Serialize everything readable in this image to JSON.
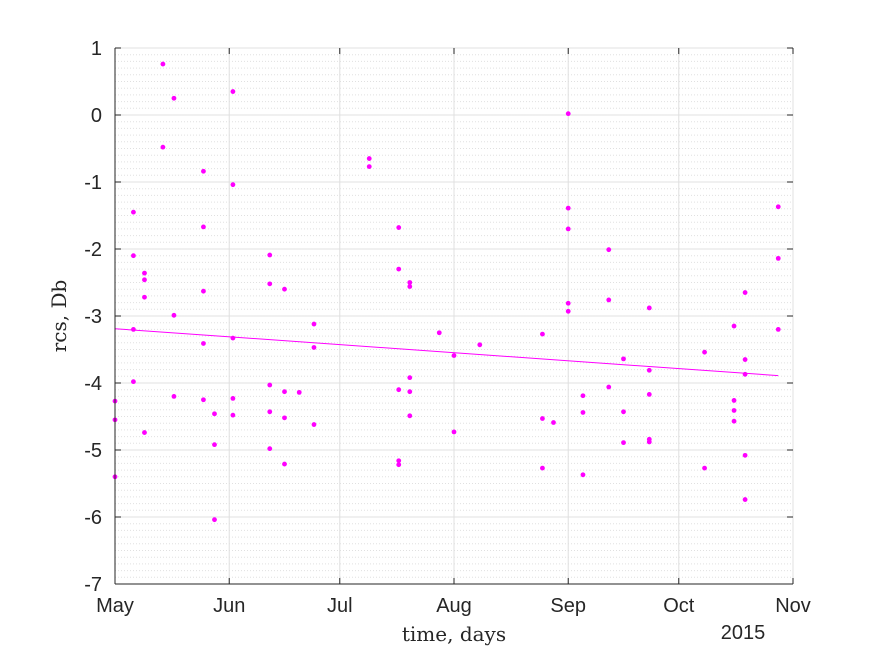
{
  "chart_data": {
    "type": "scatter",
    "title": "",
    "xlabel": "time, days",
    "ylabel": "rcs, Db",
    "x_axis_kind": "date",
    "xlim": [
      "2015-05-01",
      "2015-11-01"
    ],
    "ylim": [
      -7,
      1
    ],
    "x_ticks": [
      {
        "date": "2015-05-01",
        "label": "May"
      },
      {
        "date": "2015-06-01",
        "label": "Jun"
      },
      {
        "date": "2015-07-01",
        "label": "Jul"
      },
      {
        "date": "2015-08-01",
        "label": "Aug"
      },
      {
        "date": "2015-09-01",
        "label": "Sep"
      },
      {
        "date": "2015-10-01",
        "label": "Oct"
      },
      {
        "date": "2015-11-01",
        "label": "Nov"
      }
    ],
    "y_ticks": [
      1,
      0,
      -1,
      -2,
      -3,
      -4,
      -5,
      -6,
      -7
    ],
    "year_label": "2015",
    "grid": "major and minor",
    "legend": "none",
    "colors": {
      "points": "#ff00ff",
      "trend": "#ff00ff",
      "grid": "#e0e0e0",
      "axis": "#262626"
    },
    "series": [
      {
        "kind": "points",
        "points": [
          {
            "x": "2015-05-01",
            "y": -4.27
          },
          {
            "x": "2015-05-01",
            "y": -4.55
          },
          {
            "x": "2015-05-01",
            "y": -5.4
          },
          {
            "x": "2015-05-06",
            "y": -1.45
          },
          {
            "x": "2015-05-06",
            "y": -2.1
          },
          {
            "x": "2015-05-06",
            "y": -3.2
          },
          {
            "x": "2015-05-06",
            "y": -3.98
          },
          {
            "x": "2015-05-09",
            "y": -2.36
          },
          {
            "x": "2015-05-09",
            "y": -2.46
          },
          {
            "x": "2015-05-09",
            "y": -2.72
          },
          {
            "x": "2015-05-09",
            "y": -4.74
          },
          {
            "x": "2015-05-14",
            "y": 0.76
          },
          {
            "x": "2015-05-14",
            "y": -0.48
          },
          {
            "x": "2015-05-17",
            "y": 0.25
          },
          {
            "x": "2015-05-17",
            "y": -2.99
          },
          {
            "x": "2015-05-17",
            "y": -4.2
          },
          {
            "x": "2015-05-25",
            "y": -0.84
          },
          {
            "x": "2015-05-25",
            "y": -1.67
          },
          {
            "x": "2015-05-25",
            "y": -2.63
          },
          {
            "x": "2015-05-25",
            "y": -3.41
          },
          {
            "x": "2015-05-25",
            "y": -4.25
          },
          {
            "x": "2015-05-28",
            "y": -4.46
          },
          {
            "x": "2015-05-28",
            "y": -4.92
          },
          {
            "x": "2015-05-28",
            "y": -6.04
          },
          {
            "x": "2015-06-02",
            "y": 0.35
          },
          {
            "x": "2015-06-02",
            "y": -1.04
          },
          {
            "x": "2015-06-02",
            "y": -3.33
          },
          {
            "x": "2015-06-02",
            "y": -4.23
          },
          {
            "x": "2015-06-02",
            "y": -4.48
          },
          {
            "x": "2015-06-12",
            "y": -2.09
          },
          {
            "x": "2015-06-12",
            "y": -2.52
          },
          {
            "x": "2015-06-12",
            "y": -4.03
          },
          {
            "x": "2015-06-12",
            "y": -4.43
          },
          {
            "x": "2015-06-12",
            "y": -4.98
          },
          {
            "x": "2015-06-16",
            "y": -2.6
          },
          {
            "x": "2015-06-16",
            "y": -4.13
          },
          {
            "x": "2015-06-16",
            "y": -4.52
          },
          {
            "x": "2015-06-16",
            "y": -5.21
          },
          {
            "x": "2015-06-20",
            "y": -4.14
          },
          {
            "x": "2015-06-24",
            "y": -3.12
          },
          {
            "x": "2015-06-24",
            "y": -3.47
          },
          {
            "x": "2015-06-24",
            "y": -4.62
          },
          {
            "x": "2015-07-09",
            "y": -0.65
          },
          {
            "x": "2015-07-09",
            "y": -0.77
          },
          {
            "x": "2015-07-17",
            "y": -1.68
          },
          {
            "x": "2015-07-17",
            "y": -2.3
          },
          {
            "x": "2015-07-17",
            "y": -4.1
          },
          {
            "x": "2015-07-17",
            "y": -5.16
          },
          {
            "x": "2015-07-17",
            "y": -5.22
          },
          {
            "x": "2015-07-20",
            "y": -2.5
          },
          {
            "x": "2015-07-20",
            "y": -2.56
          },
          {
            "x": "2015-07-20",
            "y": -3.92
          },
          {
            "x": "2015-07-20",
            "y": -4.13
          },
          {
            "x": "2015-07-20",
            "y": -4.49
          },
          {
            "x": "2015-07-28",
            "y": -3.25
          },
          {
            "x": "2015-08-01",
            "y": -3.59
          },
          {
            "x": "2015-08-01",
            "y": -4.73
          },
          {
            "x": "2015-08-08",
            "y": -3.43
          },
          {
            "x": "2015-08-25",
            "y": -3.27
          },
          {
            "x": "2015-08-25",
            "y": -4.53
          },
          {
            "x": "2015-08-25",
            "y": -5.27
          },
          {
            "x": "2015-08-28",
            "y": -4.59
          },
          {
            "x": "2015-09-01",
            "y": 0.02
          },
          {
            "x": "2015-09-01",
            "y": -1.39
          },
          {
            "x": "2015-09-01",
            "y": -1.7
          },
          {
            "x": "2015-09-01",
            "y": -2.81
          },
          {
            "x": "2015-09-01",
            "y": -2.93
          },
          {
            "x": "2015-09-05",
            "y": -4.19
          },
          {
            "x": "2015-09-05",
            "y": -4.44
          },
          {
            "x": "2015-09-05",
            "y": -5.37
          },
          {
            "x": "2015-09-12",
            "y": -2.01
          },
          {
            "x": "2015-09-12",
            "y": -2.76
          },
          {
            "x": "2015-09-12",
            "y": -4.06
          },
          {
            "x": "2015-09-16",
            "y": -3.64
          },
          {
            "x": "2015-09-16",
            "y": -4.43
          },
          {
            "x": "2015-09-16",
            "y": -4.89
          },
          {
            "x": "2015-09-23",
            "y": -2.88
          },
          {
            "x": "2015-09-23",
            "y": -3.81
          },
          {
            "x": "2015-09-23",
            "y": -4.17
          },
          {
            "x": "2015-09-23",
            "y": -4.84
          },
          {
            "x": "2015-09-23",
            "y": -4.88
          },
          {
            "x": "2015-10-08",
            "y": -3.54
          },
          {
            "x": "2015-10-08",
            "y": -5.27
          },
          {
            "x": "2015-10-16",
            "y": -3.15
          },
          {
            "x": "2015-10-16",
            "y": -4.26
          },
          {
            "x": "2015-10-16",
            "y": -4.41
          },
          {
            "x": "2015-10-16",
            "y": -4.57
          },
          {
            "x": "2015-10-19",
            "y": -2.65
          },
          {
            "x": "2015-10-19",
            "y": -3.65
          },
          {
            "x": "2015-10-19",
            "y": -3.87
          },
          {
            "x": "2015-10-19",
            "y": -5.08
          },
          {
            "x": "2015-10-19",
            "y": -5.74
          },
          {
            "x": "2015-10-28",
            "y": -1.37
          },
          {
            "x": "2015-10-28",
            "y": -2.14
          },
          {
            "x": "2015-10-28",
            "y": -3.2
          }
        ]
      },
      {
        "kind": "line",
        "points": [
          {
            "x": "2015-05-01",
            "y": -3.19
          },
          {
            "x": "2015-10-28",
            "y": -3.89
          }
        ]
      }
    ]
  }
}
